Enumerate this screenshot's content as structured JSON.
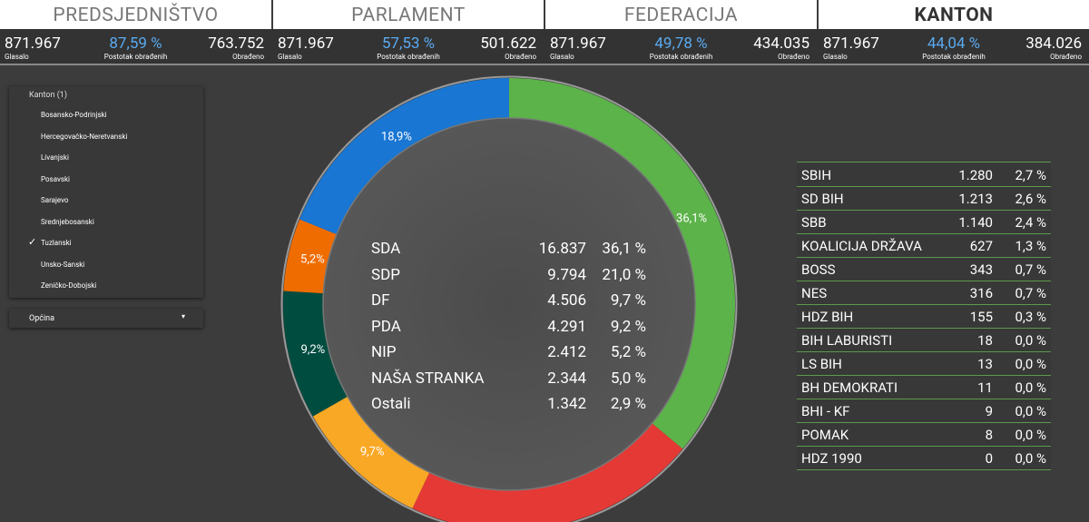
{
  "tabs": [
    {
      "title": "PREDSJEDNIŠTVO",
      "voted": "871.967",
      "voted_label": "Glasalo",
      "percent": "87,59 %",
      "percent_label": "Postotak obrađenih",
      "processed": "763.752",
      "processed_label": "Obrađeno"
    },
    {
      "title": "PARLAMENT",
      "voted": "871.967",
      "voted_label": "Glasalo",
      "percent": "57,53 %",
      "percent_label": "Postotak obrađenih",
      "processed": "501.622",
      "processed_label": "Obrađeno"
    },
    {
      "title": "FEDERACIJA",
      "voted": "871.967",
      "voted_label": "Glasalo",
      "percent": "49,78 %",
      "percent_label": "Postotak obrađenih",
      "processed": "434.035",
      "processed_label": "Obrađeno"
    },
    {
      "title": "KANTON",
      "voted": "871.967",
      "voted_label": "Glasalo",
      "percent": "44,04 %",
      "percent_label": "Postotak obrađenih",
      "processed": "384.026",
      "processed_label": "Obrađeno",
      "active": true
    }
  ],
  "filter": {
    "title": "Kanton (1)",
    "items": [
      "Bosansko-Podrinjski",
      "Hercegovačko-Neretvanski",
      "Livanjski",
      "Posavski",
      "Sarajevo",
      "Srednjebosanski",
      "Tuzlanski",
      "Unsko-Sanski",
      "Zeničko-Dobojski"
    ],
    "checked": 6,
    "second": "Općina"
  },
  "donut": {
    "segments": [
      {
        "value": 36.1,
        "label": "36,1%",
        "color": "#5cb34a"
      },
      {
        "value": 21.0,
        "color": "#e53935"
      },
      {
        "value": 9.7,
        "label": "9,7%",
        "color": "#f9a825"
      },
      {
        "value": 9.2,
        "label": "9,2%",
        "color": "#004d40"
      },
      {
        "value": 5.2,
        "label": "5,2%",
        "color": "#ef6c00"
      },
      {
        "value": 18.9,
        "label": "18,9%",
        "color": "#1976d2"
      }
    ]
  },
  "main_table": {
    "rows": [
      [
        "SDA",
        "16.837",
        "36,1 %"
      ],
      [
        "SDP",
        "9.794",
        "21,0 %"
      ],
      [
        "DF",
        "4.506",
        "9,7 %"
      ],
      [
        "PDA",
        "4.291",
        "9,2 %"
      ],
      [
        "NIP",
        "2.412",
        "5,2 %"
      ],
      [
        "NAŠA STRANKA",
        "2.344",
        "5,0 %"
      ],
      [
        "Ostali",
        "1.342",
        "2,9 %"
      ]
    ]
  },
  "side_table": {
    "rows": [
      [
        "SBIH",
        "1.280",
        "2,7 %"
      ],
      [
        "SD BIH",
        "1.213",
        "2,6 %"
      ],
      [
        "SBB",
        "1.140",
        "2,4 %"
      ],
      [
        "KOALICIJA DRŽAVA",
        "627",
        "1,3 %"
      ],
      [
        "BOSS",
        "343",
        "0,7 %"
      ],
      [
        "NES",
        "316",
        "0,7 %"
      ],
      [
        "HDZ BIH",
        "155",
        "0,3 %"
      ],
      [
        "BIH LABURISTI",
        "18",
        "0,0 %"
      ],
      [
        "LS BIH",
        "13",
        "0,0 %"
      ],
      [
        "BH DEMOKRATI",
        "11",
        "0,0 %"
      ],
      [
        "BHI - KF",
        "9",
        "0,0 %"
      ],
      [
        "POMAK",
        "8",
        "0,0 %"
      ],
      [
        "HDZ 1990",
        "0",
        "0,0 %"
      ]
    ]
  }
}
